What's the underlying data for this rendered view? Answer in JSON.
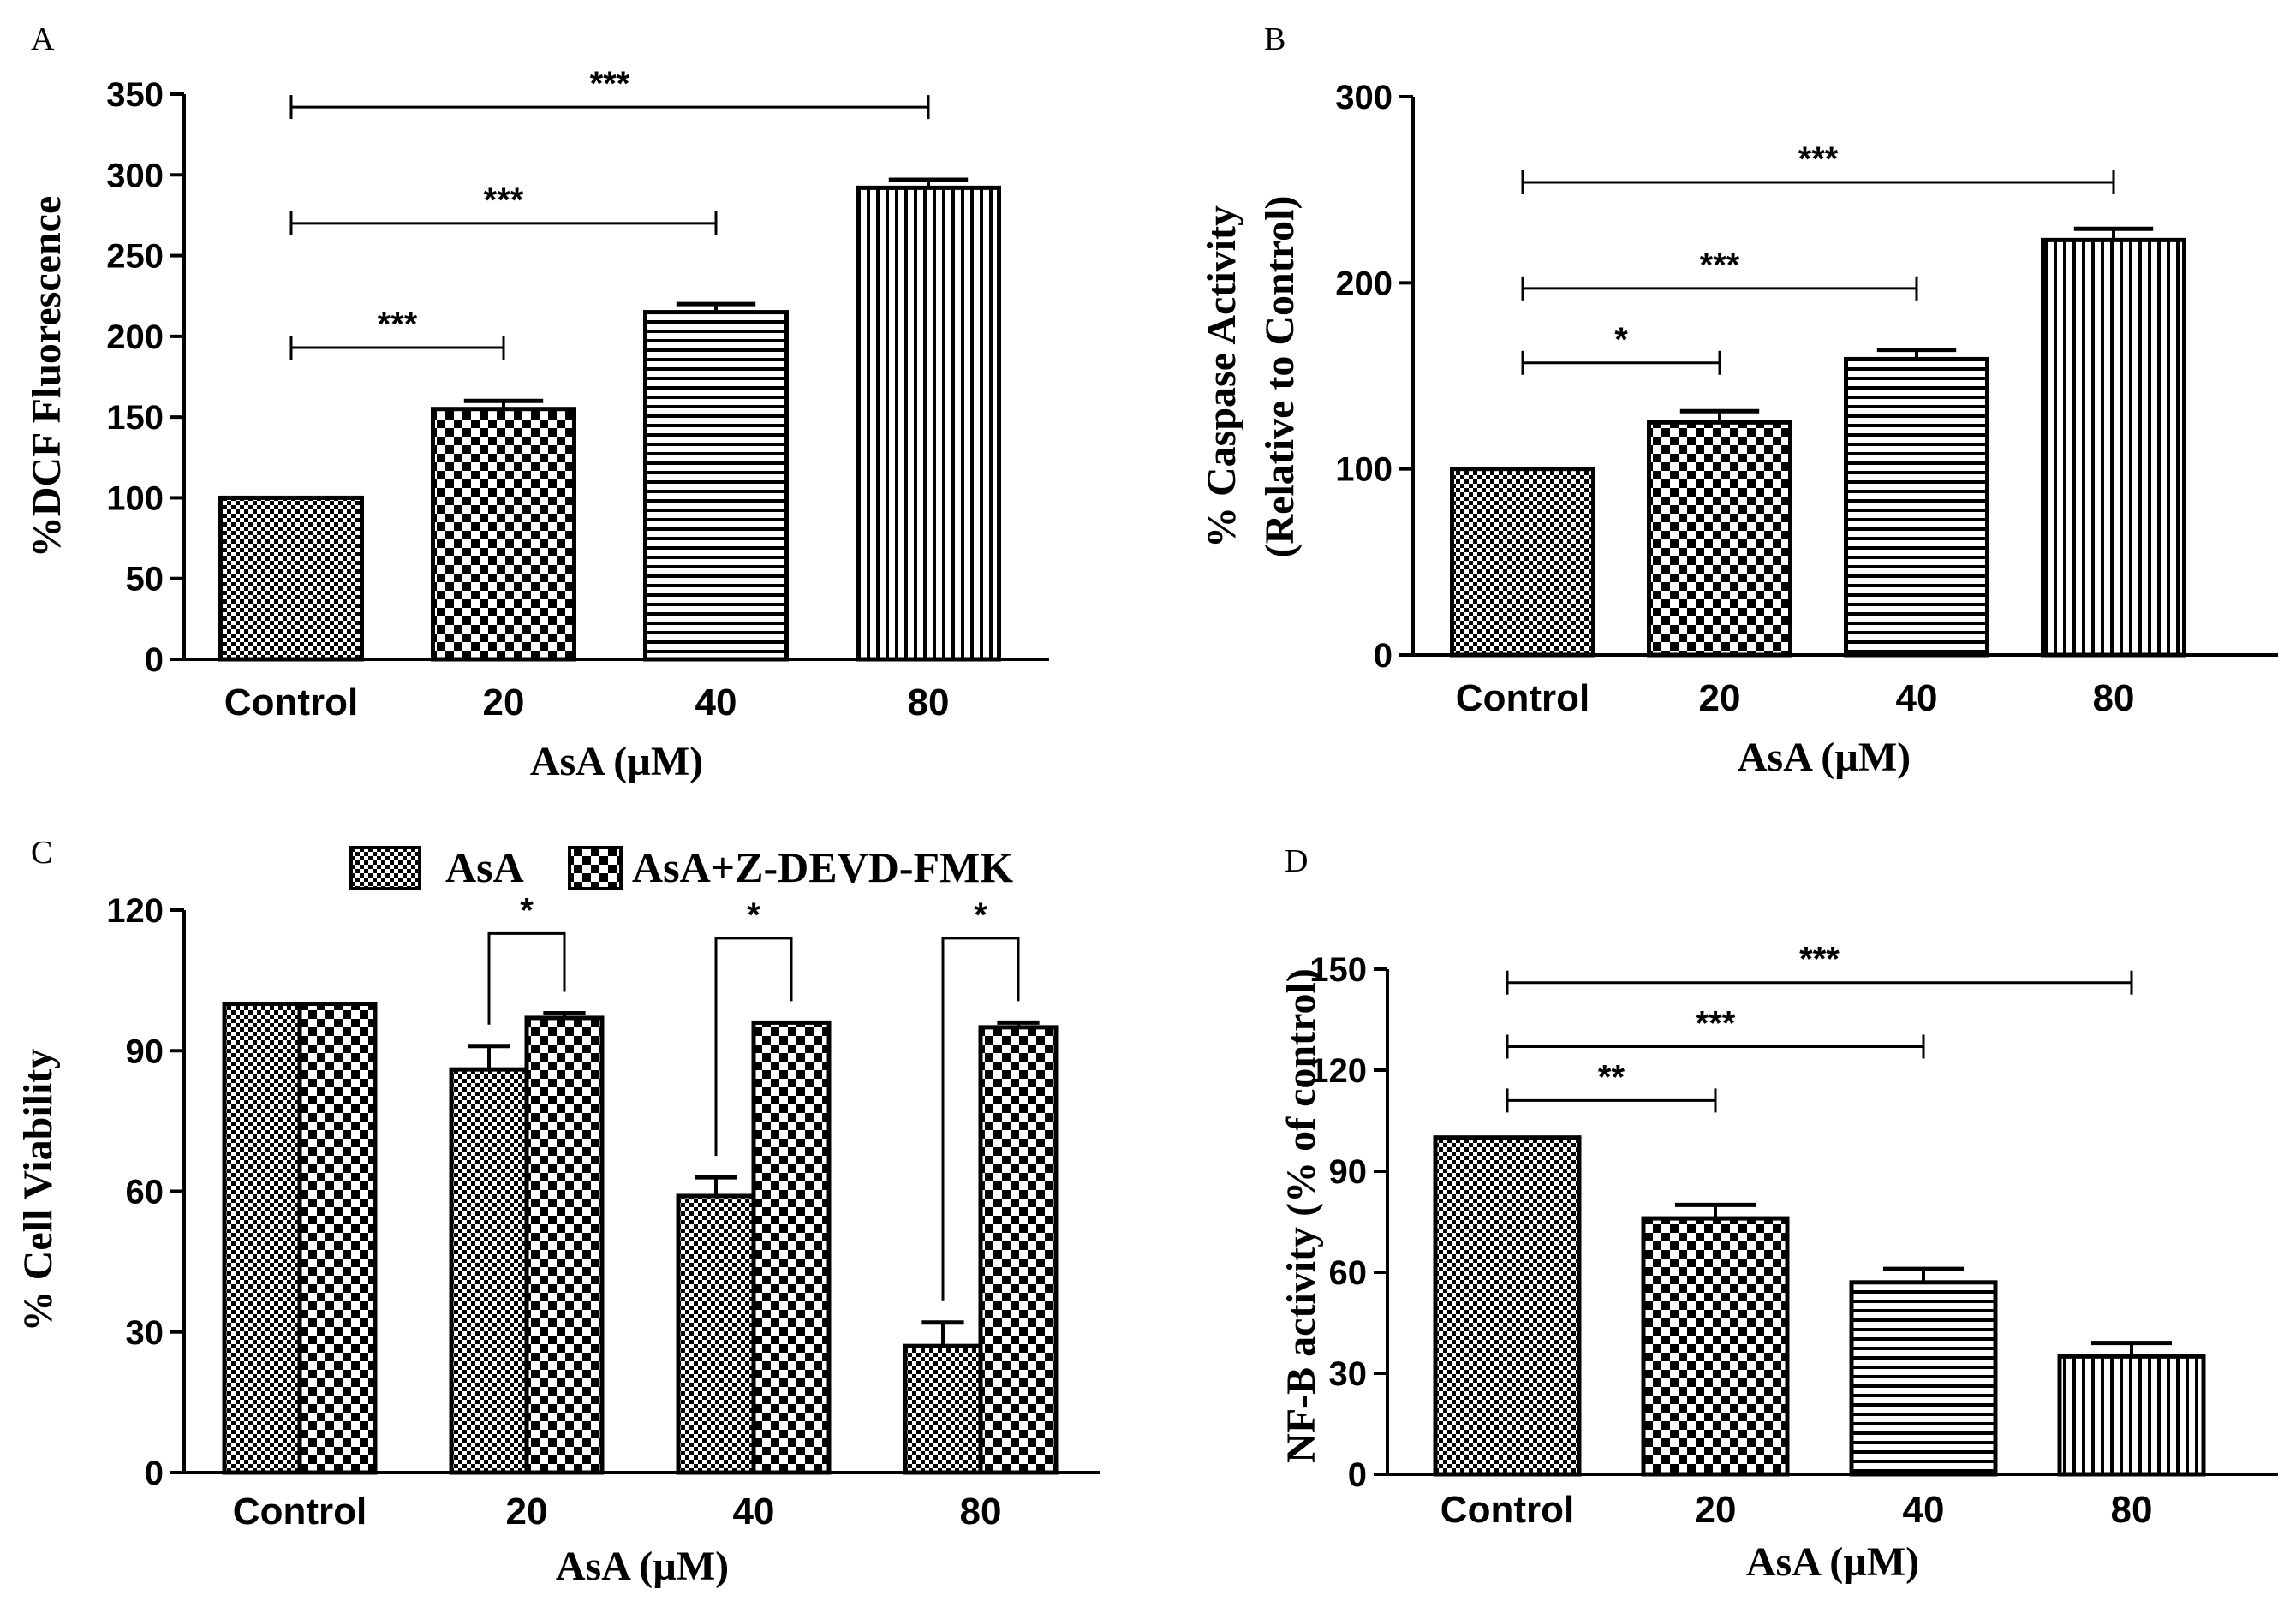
{
  "figure": {
    "colors": {
      "ink": "#000000",
      "background": "#ffffff"
    }
  },
  "chart_data": [
    {
      "panel": "A",
      "type": "bar",
      "title": "",
      "xlabel": "AsA (µM)",
      "ylabel": "%DCF Fluorescence",
      "ylim": [
        0,
        350
      ],
      "yticks": [
        "0",
        "50",
        "100",
        "150",
        "200",
        "250",
        "300",
        "350"
      ],
      "categories": [
        "Control",
        "20",
        "40",
        "80"
      ],
      "values": [
        100,
        155,
        215,
        292
      ],
      "errors": [
        0,
        5,
        5,
        5
      ],
      "patterns": [
        "fine-check",
        "check",
        "hlines",
        "vlines"
      ],
      "significance": [
        {
          "from": 0,
          "to": 1,
          "label": "***",
          "y": 193
        },
        {
          "from": 0,
          "to": 2,
          "label": "***",
          "y": 270
        },
        {
          "from": 0,
          "to": 3,
          "label": "***",
          "y": 342
        }
      ]
    },
    {
      "panel": "B",
      "type": "bar",
      "title": "",
      "xlabel": "AsA (µM)",
      "ylabel": [
        "% Caspase Activity",
        "(Relative to Control)"
      ],
      "ylim": [
        0,
        300
      ],
      "yticks": [
        "0",
        "100",
        "200",
        "300"
      ],
      "categories": [
        "Control",
        "20",
        "40",
        "80"
      ],
      "values": [
        100,
        125,
        159,
        223
      ],
      "errors": [
        0,
        6,
        5,
        6
      ],
      "patterns": [
        "fine-check",
        "check",
        "hlines",
        "vlines"
      ],
      "significance": [
        {
          "from": 0,
          "to": 1,
          "label": "*",
          "y": 157
        },
        {
          "from": 0,
          "to": 2,
          "label": "***",
          "y": 197
        },
        {
          "from": 0,
          "to": 3,
          "label": "***",
          "y": 254
        }
      ]
    },
    {
      "panel": "C",
      "type": "bar",
      "title": "",
      "xlabel": "AsA (µM)",
      "ylabel": "% Cell Viability",
      "ylim": [
        0,
        120
      ],
      "yticks": [
        "0",
        "30",
        "60",
        "90",
        "120"
      ],
      "categories": [
        "Control",
        "20",
        "40",
        "80"
      ],
      "series": [
        {
          "name": "AsA",
          "values": [
            100,
            86,
            59,
            27
          ],
          "errors": [
            0,
            5,
            4,
            5
          ],
          "pattern": "fine-check"
        },
        {
          "name": "AsA+Z-DEVD-FMK",
          "values": [
            100,
            97,
            96,
            95
          ],
          "errors": [
            0,
            1,
            0,
            1
          ],
          "pattern": "check"
        }
      ],
      "legend": "top",
      "significance": [
        {
          "category": 1,
          "label": "*",
          "y": 115
        },
        {
          "category": 2,
          "label": "*",
          "y": 114
        },
        {
          "category": 3,
          "label": "*",
          "y": 114
        }
      ]
    },
    {
      "panel": "D",
      "type": "bar",
      "title": "",
      "xlabel": "AsA (µM)",
      "ylabel": "NF-B activity (% of control)",
      "ylim": [
        0,
        150
      ],
      "yticks": [
        "0",
        "30",
        "60",
        "90",
        "120",
        "150"
      ],
      "categories": [
        "Control",
        "20",
        "40",
        "80"
      ],
      "values": [
        100,
        76,
        57,
        35
      ],
      "errors": [
        0,
        4,
        4,
        4
      ],
      "patterns": [
        "fine-check",
        "check",
        "hlines",
        "vlines"
      ],
      "significance": [
        {
          "from": 0,
          "to": 1,
          "label": "**",
          "y": 111
        },
        {
          "from": 0,
          "to": 2,
          "label": "***",
          "y": 127
        },
        {
          "from": 0,
          "to": 3,
          "label": "***",
          "y": 146
        }
      ]
    }
  ]
}
